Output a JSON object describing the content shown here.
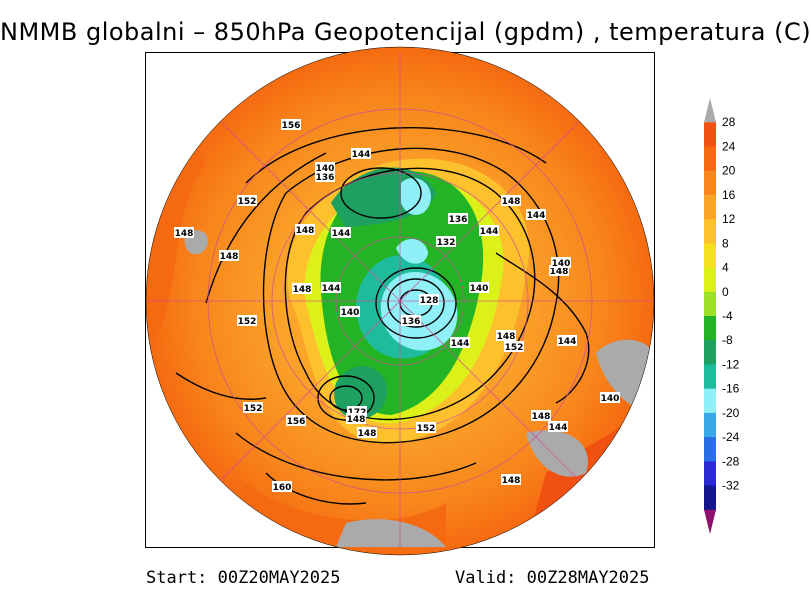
{
  "title": "NMMB globalni – 850hPa Geopotencijal (gpdm) , temperatura (C)",
  "footer": {
    "start_label": "Start:",
    "start_value": "00Z20MAY2025",
    "valid_label": "Valid:",
    "valid_value": "00Z28MAY2025"
  },
  "colorbar": {
    "ticks": [
      "28",
      "24",
      "20",
      "16",
      "12",
      "8",
      "4",
      "0",
      "-4",
      "-8",
      "-12",
      "-16",
      "-20",
      "-24",
      "-28",
      "-32"
    ],
    "colors": [
      "#f05010",
      "#f56a10",
      "#f8861c",
      "#fba42a",
      "#fdc12d",
      "#f6df1f",
      "#dcf01a",
      "#9ce028",
      "#22b424",
      "#1ea060",
      "#1ebc9c",
      "#8ff0f8",
      "#38a8e8",
      "#2a6ee6",
      "#2a2ad0",
      "#161690",
      "#cf16a8",
      "#901070"
    ]
  },
  "map": {
    "contour_labels": [
      {
        "text": "156"
      },
      {
        "text": "144"
      },
      {
        "text": "140"
      },
      {
        "text": "136"
      },
      {
        "text": "152"
      },
      {
        "text": "148"
      },
      {
        "text": "148"
      },
      {
        "text": "144"
      },
      {
        "text": "148"
      },
      {
        "text": "144"
      },
      {
        "text": "136"
      },
      {
        "text": "132"
      },
      {
        "text": "144"
      },
      {
        "text": "140"
      },
      {
        "text": "148"
      },
      {
        "text": "148"
      },
      {
        "text": "144"
      },
      {
        "text": "148"
      },
      {
        "text": "140"
      },
      {
        "text": "128"
      },
      {
        "text": "140"
      },
      {
        "text": "152"
      },
      {
        "text": "136"
      },
      {
        "text": "144"
      },
      {
        "text": "148"
      },
      {
        "text": "152"
      },
      {
        "text": "144"
      },
      {
        "text": "152"
      },
      {
        "text": "156"
      },
      {
        "text": "172"
      },
      {
        "text": "148"
      },
      {
        "text": "148"
      },
      {
        "text": "152"
      },
      {
        "text": "148"
      },
      {
        "text": "144"
      },
      {
        "text": "140"
      },
      {
        "text": "160"
      },
      {
        "text": "148"
      }
    ]
  }
}
